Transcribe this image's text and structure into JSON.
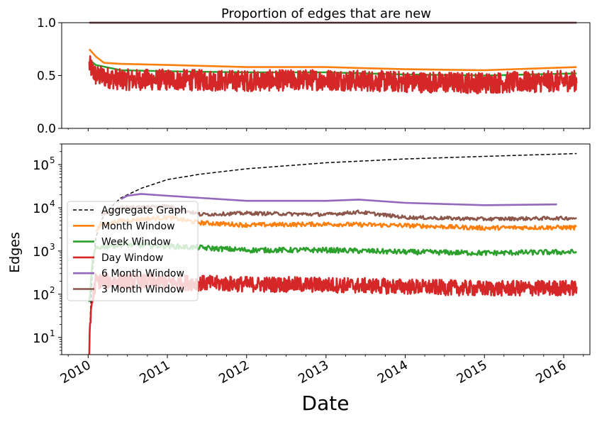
{
  "chart_data": [
    {
      "type": "line",
      "title": "Proportion of edges that are new",
      "xlabel": "",
      "ylabel": "",
      "ylim": [
        0.0,
        1.0
      ],
      "yticks": [
        "0.0",
        "0.5",
        "1.0"
      ],
      "xlim": [
        "2009-09-01",
        "2016-05-01"
      ],
      "grid": false,
      "series": [
        {
          "name": "Aggregate Graph",
          "color": "#000000",
          "style": "dashed",
          "x": [
            "2010-01-06",
            "2016-03-01"
          ],
          "y": [
            1.0,
            1.0
          ]
        },
        {
          "name": "6 Month Window",
          "color": "#9467bd",
          "x": [
            "2010-01-06",
            "2016-03-01"
          ],
          "y": [
            1.0,
            1.0
          ]
        },
        {
          "name": "3 Month Window",
          "color": "#8c564b",
          "x": [
            "2010-01-06",
            "2016-03-01"
          ],
          "y": [
            1.0,
            1.0
          ]
        },
        {
          "name": "Month Window",
          "color": "#ff7f0e",
          "x": [
            "2010-01-06",
            "2010-02-05",
            "2010-03-15",
            "2010-06-01",
            "2011-01-01",
            "2012-01-01",
            "2013-01-01",
            "2014-01-01",
            "2015-01-01",
            "2016-03-01"
          ],
          "y": [
            0.75,
            0.68,
            0.62,
            0.61,
            0.6,
            0.58,
            0.58,
            0.56,
            0.55,
            0.58
          ]
        },
        {
          "name": "Week Window",
          "color": "#2ca02c",
          "x": [
            "2010-01-06",
            "2010-02-05",
            "2010-06-01",
            "2011-01-01",
            "2012-01-01",
            "2013-01-01",
            "2014-01-01",
            "2015-01-01",
            "2016-03-01"
          ],
          "y": [
            0.65,
            0.6,
            0.55,
            0.54,
            0.53,
            0.53,
            0.51,
            0.5,
            0.52
          ]
        },
        {
          "name": "Day Window",
          "color": "#d62728",
          "x": [
            "2010-01-06",
            "2010-02-05",
            "2010-06-01",
            "2011-01-01",
            "2012-01-01",
            "2013-01-01",
            "2014-01-01",
            "2015-01-01",
            "2016-03-01"
          ],
          "y": [
            0.6,
            0.5,
            0.46,
            0.46,
            0.45,
            0.46,
            0.44,
            0.43,
            0.45
          ],
          "noise": 0.1
        }
      ]
    },
    {
      "type": "line",
      "title": "",
      "xlabel": "Date",
      "ylabel": "Edges",
      "yscale": "log",
      "ylim": [
        4,
        300000
      ],
      "yticks": [
        10,
        100,
        1000,
        10000,
        100000
      ],
      "xlim": [
        "2009-09-01",
        "2016-05-01"
      ],
      "xticks": [
        "2010",
        "2011",
        "2012",
        "2013",
        "2014",
        "2015",
        "2016"
      ],
      "grid": false,
      "legend": "left",
      "series": [
        {
          "name": "Aggregate Graph",
          "color": "#000000",
          "style": "dashed",
          "x": [
            "2010-01-06",
            "2010-01-20",
            "2010-02-05",
            "2010-03-01",
            "2010-04-01",
            "2010-06-01",
            "2010-09-01",
            "2011-01-01",
            "2011-06-01",
            "2012-01-01",
            "2013-01-01",
            "2014-01-01",
            "2015-01-01",
            "2016-03-01"
          ],
          "y": [
            10,
            300,
            2000,
            5000,
            9000,
            17000,
            28000,
            45000,
            60000,
            80000,
            110000,
            135000,
            155000,
            180000
          ]
        },
        {
          "name": "Month Window",
          "color": "#ff7f0e",
          "x": [
            "2010-02-05",
            "2010-03-01",
            "2010-06-01",
            "2011-01-01",
            "2011-06-01",
            "2012-01-01",
            "2013-01-01",
            "2014-01-01",
            "2015-01-01",
            "2015-06-01",
            "2016-03-01"
          ],
          "y": [
            3000,
            4000,
            5000,
            6000,
            4500,
            4000,
            4200,
            3900,
            3400,
            3500,
            3500
          ],
          "noise": 0.05
        },
        {
          "name": "Week Window",
          "color": "#2ca02c",
          "x": [
            "2010-01-06",
            "2010-01-20",
            "2010-02-05",
            "2010-06-01",
            "2011-01-01",
            "2012-01-01",
            "2013-01-01",
            "2014-01-01",
            "2015-01-01",
            "2016-03-01"
          ],
          "y": [
            60,
            500,
            1200,
            1400,
            1300,
            1050,
            1050,
            950,
            900,
            950
          ],
          "noise": 0.06
        },
        {
          "name": "Day Window",
          "color": "#d62728",
          "x": [
            "2010-01-06",
            "2010-01-15",
            "2010-02-05",
            "2010-06-01",
            "2011-01-01",
            "2012-01-01",
            "2013-01-01",
            "2014-01-01",
            "2015-01-01",
            "2016-03-01"
          ],
          "y": [
            6,
            50,
            200,
            200,
            190,
            170,
            165,
            150,
            135,
            140
          ],
          "noise": 0.18
        },
        {
          "name": "6 Month Window",
          "color": "#9467bd",
          "x": [
            "2010-06-01",
            "2010-07-01",
            "2010-09-01",
            "2011-01-01",
            "2011-06-01",
            "2012-01-01",
            "2013-01-01",
            "2013-06-01",
            "2014-01-01",
            "2015-01-01",
            "2015-12-01"
          ],
          "y": [
            16000,
            19000,
            21000,
            19000,
            17000,
            14500,
            14500,
            15500,
            13000,
            11500,
            12000
          ]
        },
        {
          "name": "3 Month Window",
          "color": "#8c564b",
          "x": [
            "2010-03-05",
            "2010-06-01",
            "2011-01-01",
            "2011-06-01",
            "2012-01-01",
            "2013-01-01",
            "2013-06-01",
            "2014-01-01",
            "2015-01-01",
            "2016-03-01"
          ],
          "y": [
            7000,
            10000,
            11000,
            7000,
            7500,
            7000,
            8000,
            6000,
            5500,
            5800
          ],
          "noise": 0.04
        }
      ]
    }
  ]
}
